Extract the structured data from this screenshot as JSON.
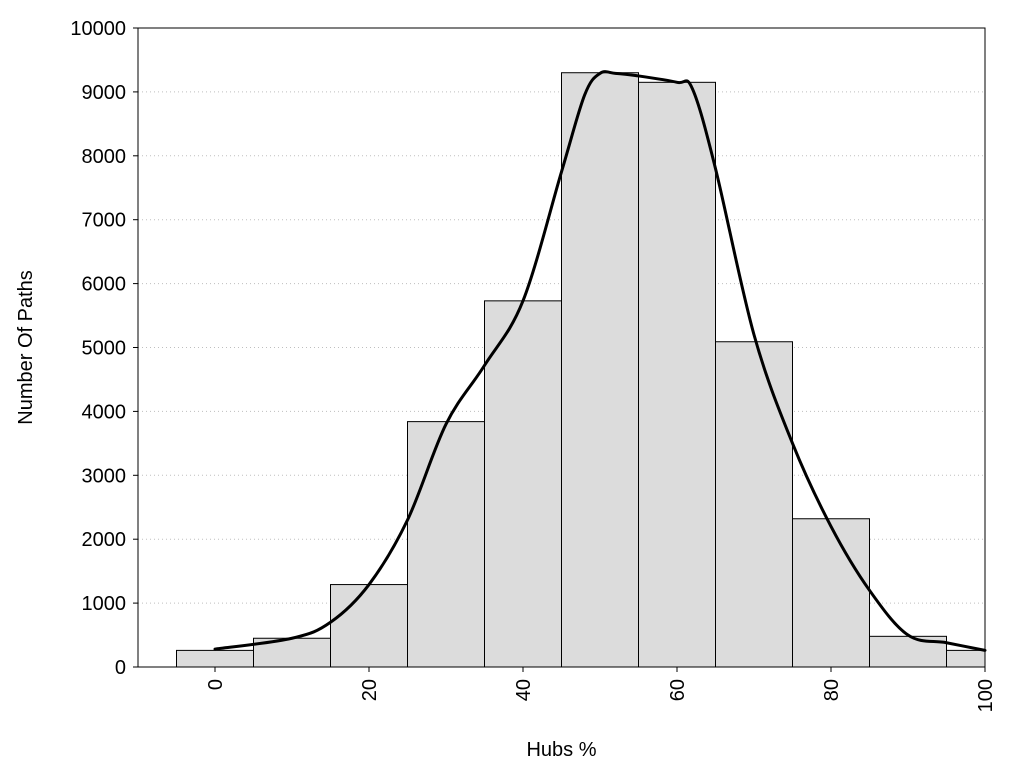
{
  "chart_data": {
    "type": "bar",
    "title": "",
    "xlabel": "Hubs %",
    "ylabel": "Number Of Paths",
    "xlim": [
      -10,
      100
    ],
    "ylim": [
      0,
      10000
    ],
    "x_ticks": [
      0,
      20,
      40,
      60,
      80,
      100
    ],
    "x_tick_labels": [
      "0",
      "20",
      "40",
      "60",
      "80",
      "100"
    ],
    "y_ticks": [
      0,
      1000,
      2000,
      3000,
      4000,
      5000,
      6000,
      7000,
      8000,
      9000,
      10000
    ],
    "y_tick_labels": [
      "0",
      "1000",
      "2000",
      "3000",
      "4000",
      "5000",
      "6000",
      "7000",
      "8000",
      "9000",
      "10000"
    ],
    "grid": "horizontal-dotted",
    "bar_color": "#dcdcdc",
    "bar_edge_color": "#000000",
    "bins": [
      {
        "center": 0,
        "width": 10,
        "value": 260
      },
      {
        "center": 10,
        "width": 10,
        "value": 450
      },
      {
        "center": 20,
        "width": 10,
        "value": 1290
      },
      {
        "center": 30,
        "width": 10,
        "value": 3840
      },
      {
        "center": 40,
        "width": 10,
        "value": 5730
      },
      {
        "center": 50,
        "width": 10,
        "value": 9300
      },
      {
        "center": 60,
        "width": 10,
        "value": 9150
      },
      {
        "center": 70,
        "width": 10,
        "value": 5090
      },
      {
        "center": 80,
        "width": 10,
        "value": 2320
      },
      {
        "center": 90,
        "width": 10,
        "value": 480
      },
      {
        "center": 100,
        "width": 10,
        "value": 260
      }
    ],
    "density_curve": {
      "color": "#000000",
      "x": [
        0,
        10,
        15,
        20,
        25,
        30,
        35,
        40,
        45,
        48,
        50,
        52,
        55,
        60,
        62,
        65,
        70,
        75,
        80,
        85,
        90,
        95,
        100
      ],
      "y": [
        280,
        450,
        700,
        1290,
        2300,
        3800,
        4720,
        5730,
        7750,
        8950,
        9290,
        9290,
        9250,
        9150,
        9050,
        7800,
        5200,
        3500,
        2200,
        1200,
        500,
        380,
        260
      ]
    }
  }
}
